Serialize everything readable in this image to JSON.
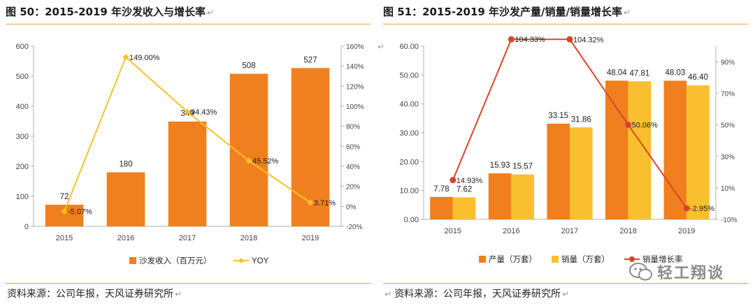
{
  "left": {
    "title": "图 50：2015-2019 年沙发收入与增长率",
    "return_mark": "↵",
    "source": "资料来源：公司年报，天风证券研究所",
    "colors": {
      "bar": "#F0801E",
      "line": "#F6C22A"
    },
    "chart_data": {
      "type": "bar",
      "categories": [
        "2015",
        "2016",
        "2017",
        "2018",
        "2019"
      ],
      "series": [
        {
          "name": "沙发收入（百万元）",
          "type": "bar",
          "axis": "left",
          "values": [
            72,
            180,
            349,
            508,
            527
          ],
          "labels": [
            "72",
            "180",
            "349",
            "508",
            "527"
          ]
        },
        {
          "name": "YOY",
          "type": "line",
          "axis": "right",
          "values": [
            -5.07,
            149.0,
            94.43,
            45.52,
            3.71
          ],
          "labels": [
            "-5.07%",
            "149.00%",
            "94.43%",
            "45.52%",
            "3.71%"
          ]
        }
      ],
      "y_left": {
        "min": 0,
        "max": 600,
        "ticks": [
          "0",
          "100",
          "200",
          "300",
          "400",
          "500",
          "600"
        ]
      },
      "y_right": {
        "min": -20,
        "max": 160,
        "ticks": [
          "-20%",
          "0%",
          "20%",
          "40%",
          "60%",
          "80%",
          "100%",
          "120%",
          "140%",
          "160%"
        ]
      },
      "legend": [
        "沙发收入（百万元）",
        "YOY"
      ],
      "legend_position": "bottom",
      "grid": false
    }
  },
  "right": {
    "title": "图 51：2015-2019 年沙发产量/销量/销量增长率",
    "return_mark": "↵",
    "source": "资料来源：公司年报，天风证券研究所",
    "colors": {
      "bar1": "#F0801E",
      "bar2": "#F8C02E",
      "line": "#D8442A"
    },
    "chart_data": {
      "type": "bar",
      "categories": [
        "2015",
        "2016",
        "2017",
        "2018",
        "2019"
      ],
      "series": [
        {
          "name": "产量（万套）",
          "type": "bar",
          "axis": "left",
          "values": [
            7.78,
            15.93,
            33.15,
            48.04,
            48.03
          ],
          "labels": [
            "7.78",
            "15.93",
            "33.15",
            "48.04",
            "48.03"
          ]
        },
        {
          "name": "销量（万套）",
          "type": "bar",
          "axis": "left",
          "values": [
            7.62,
            15.57,
            31.86,
            47.81,
            46.4
          ],
          "labels": [
            "7.62",
            "15.57",
            "31.86",
            "47.81",
            "46.40"
          ]
        },
        {
          "name": "销量增长率",
          "type": "line",
          "axis": "right",
          "values": [
            14.93,
            104.33,
            104.32,
            50.06,
            -2.95
          ],
          "labels": [
            "14.93%",
            "104.33%",
            "104.32%",
            "50.06%",
            "-2.95%"
          ]
        }
      ],
      "y_left": {
        "min": 0,
        "max": 60,
        "ticks": [
          "0.00",
          "10.00",
          "20.00",
          "30.00",
          "40.00",
          "50.00",
          "60.00"
        ]
      },
      "y_right": {
        "min": -10,
        "max": 100,
        "ticks": [
          "-10%",
          "10%",
          "30%",
          "50%",
          "70%",
          "90%"
        ]
      },
      "legend": [
        "产量（万套）",
        "销量（万套）",
        "销量增长率"
      ],
      "legend_position": "bottom",
      "grid": false
    }
  },
  "watermark": {
    "text": "轻工翔谈"
  }
}
